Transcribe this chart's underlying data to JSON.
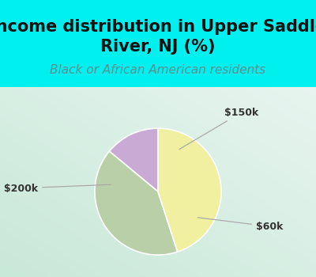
{
  "title": "Income distribution in Upper Saddle\nRiver, NJ (%)",
  "subtitle": "Black or African American residents",
  "slices": [
    {
      "label": "$150k",
      "value": 14,
      "color": "#c9aad4"
    },
    {
      "label": "$60k",
      "value": 41,
      "color": "#b8cfa8"
    },
    {
      "label": "> $200k",
      "value": 45,
      "color": "#f0f0a0"
    }
  ],
  "title_fontsize": 15,
  "subtitle_fontsize": 11,
  "title_color": "#111111",
  "subtitle_color": "#5a9090",
  "header_bg": "#00f0f0",
  "label_fontsize": 9,
  "label_color": "#333333",
  "startangle": 90,
  "border_color": "#00f0f0",
  "border_width": 10
}
